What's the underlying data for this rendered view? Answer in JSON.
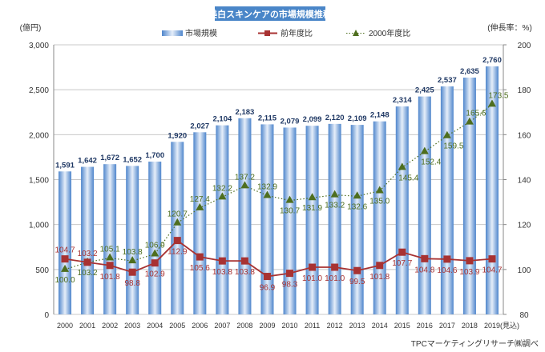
{
  "chart_data": {
    "type": "bar+line",
    "title": "美白スキンケアの市場規模推移",
    "ylabel_left": "(億円)",
    "ylabel_right": "(伸長率：%)",
    "ylim_left": [
      0,
      3000
    ],
    "ylim_right": [
      80,
      200
    ],
    "yticks_left": [
      "0",
      "500",
      "1,000",
      "1,500",
      "2,000",
      "2,500",
      "3,000"
    ],
    "yticks_right": [
      "80",
      "100",
      "120",
      "140",
      "160",
      "180",
      "200"
    ],
    "grid": true,
    "legend_position": "top",
    "categories": [
      "2000",
      "2001",
      "2002",
      "2003",
      "2004",
      "2005",
      "2006",
      "2007",
      "2008",
      "2009",
      "2010",
      "2011",
      "2012",
      "2013",
      "2014",
      "2015",
      "2016",
      "2017",
      "2018",
      "2019(見込)"
    ],
    "series": [
      {
        "name": "市場規模",
        "type": "bar",
        "axis": "left",
        "color": "#5b8fd0",
        "values": [
          1591,
          1642,
          1672,
          1652,
          1700,
          1920,
          2027,
          2104,
          2183,
          2115,
          2079,
          2099,
          2120,
          2109,
          2148,
          2314,
          2425,
          2537,
          2635,
          2760
        ],
        "labels": [
          "1,591",
          "1,642",
          "1,672",
          "1,652",
          "1,700",
          "1,920",
          "2,027",
          "2,104",
          "2,183",
          "2,115",
          "2,079",
          "2,099",
          "2,120",
          "2,109",
          "2,148",
          "2,314",
          "2,425",
          "2,537",
          "2,635",
          "2,760"
        ]
      },
      {
        "name": "前年度比",
        "type": "line",
        "axis": "right",
        "color": "#a83232",
        "values": [
          104.7,
          103.2,
          101.8,
          98.8,
          102.9,
          112.9,
          105.6,
          103.8,
          103.8,
          96.9,
          98.3,
          101.0,
          101.0,
          99.5,
          101.8,
          107.7,
          104.8,
          104.6,
          103.9,
          104.7
        ]
      },
      {
        "name": "2000年度比",
        "type": "line-dotted",
        "axis": "right",
        "color": "#4e6e1e",
        "values": [
          100.0,
          103.2,
          105.1,
          103.8,
          106.9,
          120.7,
          127.4,
          132.2,
          137.2,
          132.9,
          130.7,
          131.9,
          133.2,
          132.6,
          135.0,
          145.4,
          152.4,
          159.5,
          165.6,
          173.5
        ]
      }
    ],
    "source": "TPCマーケティングリサーチ㈱調べ"
  }
}
